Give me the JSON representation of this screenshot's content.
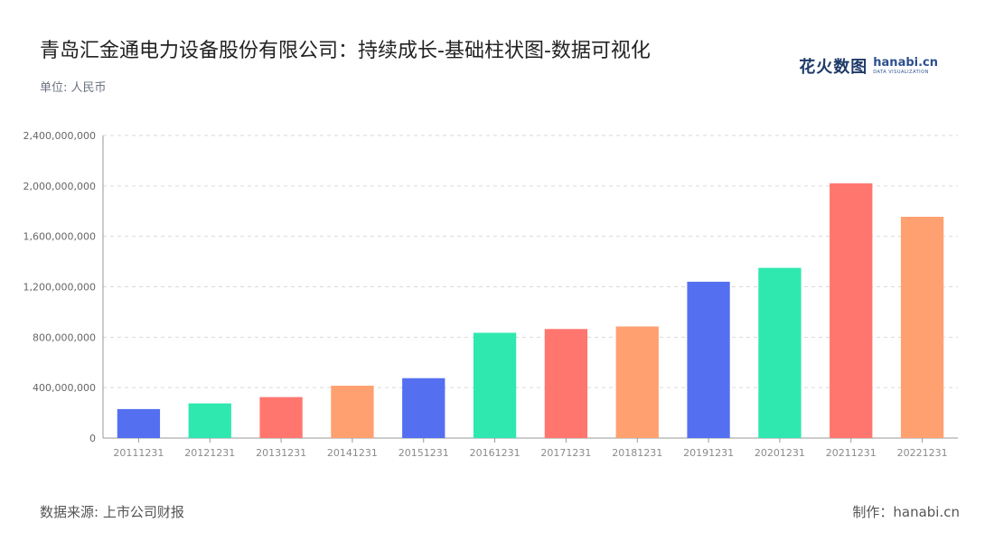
{
  "title": "青岛汇金通电力设备股份有限公司：持续成长-基础柱状图-数据可视化",
  "unit_label": "单位: 人民币",
  "brand": {
    "cn": "花火数图",
    "en": "hanabi.cn",
    "tagline": "DATA VISUALIZATION"
  },
  "footer": {
    "source": "数据来源: 上市公司财报",
    "credit": "制作：hanabi.cn"
  },
  "colors": [
    "#5470f0",
    "#2ee8b0",
    "#ff766e",
    "#ffa070"
  ],
  "chart_data": {
    "type": "bar",
    "categories": [
      "20111231",
      "20121231",
      "20131231",
      "20141231",
      "20151231",
      "20161231",
      "20171231",
      "20181231",
      "20191231",
      "20201231",
      "20211231",
      "20221231"
    ],
    "values": [
      230000000,
      275000000,
      325000000,
      415000000,
      475000000,
      835000000,
      865000000,
      885000000,
      1240000000,
      1350000000,
      2020000000,
      1755000000
    ],
    "ylim": [
      0,
      2400000000
    ],
    "yticks": [
      0,
      400000000,
      800000000,
      1200000000,
      1600000000,
      2000000000,
      2400000000
    ],
    "ytick_labels": [
      "0",
      "400,000,000",
      "800,000,000",
      "1,200,000,000",
      "1,600,000,000",
      "2,000,000,000",
      "2,400,000,000"
    ],
    "grid": true
  }
}
